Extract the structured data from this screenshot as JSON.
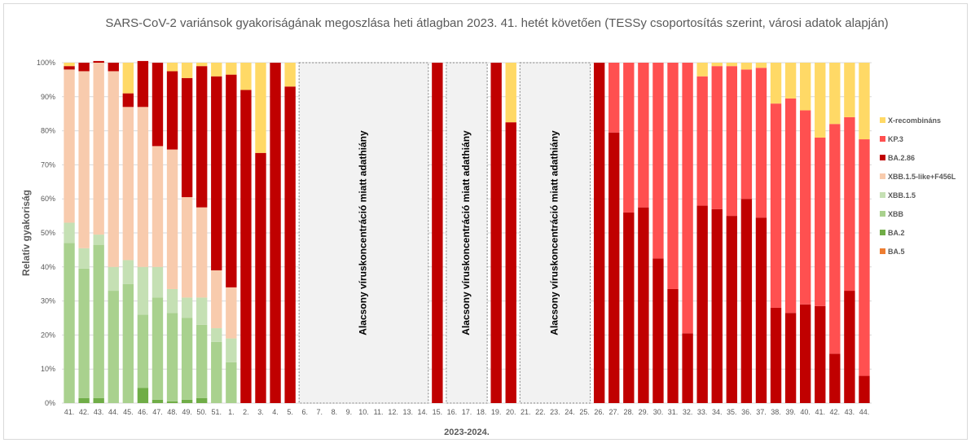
{
  "chart_data": {
    "type": "bar",
    "stacked": true,
    "title": "SARS-CoV-2 variánsok gyakoriságának megoszlása heti átlagban 2023. 41. hetét követően (TESSy csoportosítás szerint, városi adatok alapján)",
    "xlabel": "2023-2024.",
    "ylabel": "Relatív gyakoriság",
    "ylim": [
      0,
      100
    ],
    "yticks": [
      "0%",
      "10%",
      "20%",
      "30%",
      "40%",
      "50%",
      "60%",
      "70%",
      "80%",
      "90%",
      "100%"
    ],
    "grid": true,
    "legend_position": "right",
    "categories": [
      "41.",
      "42.",
      "43.",
      "44.",
      "45.",
      "46.",
      "47.",
      "48.",
      "49.",
      "50.",
      "51.",
      "1.",
      "2.",
      "3.",
      "4.",
      "5.",
      "6.",
      "7.",
      "8.",
      "9.",
      "10.",
      "11.",
      "12.",
      "13.",
      "14.",
      "15.",
      "16.",
      "17.",
      "18.",
      "19.",
      "20.",
      "21.",
      "22.",
      "23.",
      "24.",
      "25.",
      "26.",
      "27.",
      "28.",
      "29.",
      "30.",
      "31.",
      "32.",
      "33.",
      "34.",
      "35.",
      "36.",
      "37.",
      "38.",
      "39.",
      "40.",
      "41.",
      "42.",
      "43.",
      "44."
    ],
    "series": [
      {
        "name": "BA.5",
        "color": "#ed7d31",
        "values": [
          0,
          0,
          0,
          0,
          0,
          0,
          0,
          0,
          0,
          0,
          0,
          0,
          0,
          0,
          0,
          0,
          null,
          null,
          null,
          null,
          null,
          null,
          null,
          null,
          null,
          0,
          null,
          null,
          null,
          0,
          0,
          null,
          null,
          null,
          null,
          null,
          0,
          0,
          0,
          0,
          0,
          0,
          0,
          0,
          0,
          0,
          0,
          0,
          0,
          0,
          0,
          0,
          0,
          0,
          0
        ]
      },
      {
        "name": "BA.2",
        "color": "#70ad47",
        "values": [
          0,
          1.5,
          1.5,
          0,
          0,
          4.5,
          1,
          0.5,
          1,
          1.5,
          0,
          0,
          0,
          0,
          0,
          0,
          null,
          null,
          null,
          null,
          null,
          null,
          null,
          null,
          null,
          0,
          null,
          null,
          null,
          0,
          0,
          null,
          null,
          null,
          null,
          null,
          0,
          0,
          0,
          0,
          0,
          0,
          0,
          0,
          0,
          0,
          0,
          0,
          0,
          0,
          0,
          0,
          0,
          0,
          0
        ]
      },
      {
        "name": "XBB",
        "color": "#a9d18e",
        "values": [
          47,
          38,
          45,
          33,
          35,
          21.5,
          30,
          26,
          24,
          21.5,
          18,
          12,
          0,
          0,
          0,
          0,
          null,
          null,
          null,
          null,
          null,
          null,
          null,
          null,
          null,
          0,
          null,
          null,
          null,
          0,
          0,
          null,
          null,
          null,
          null,
          null,
          0,
          0,
          0,
          0,
          0,
          0,
          0,
          0,
          0,
          0,
          0,
          0,
          0,
          0,
          0,
          0,
          0,
          0,
          0
        ]
      },
      {
        "name": "XBB.1.5",
        "color": "#c5e0b4",
        "values": [
          6,
          6,
          3,
          7,
          7,
          14,
          9,
          7,
          6,
          8,
          4,
          7,
          0,
          0,
          0,
          0,
          null,
          null,
          null,
          null,
          null,
          null,
          null,
          null,
          null,
          0,
          null,
          null,
          null,
          0,
          0,
          null,
          null,
          null,
          null,
          null,
          0,
          0,
          0,
          0,
          0,
          0,
          0,
          0,
          0,
          0,
          0,
          0,
          0,
          0,
          0,
          0,
          0,
          0,
          0
        ]
      },
      {
        "name": "XBB.1.5-like+F456L",
        "color": "#f8cbad",
        "values": [
          45,
          52,
          50.5,
          57.5,
          45,
          47,
          35.5,
          41,
          29.5,
          26.5,
          17,
          15,
          0,
          0,
          0,
          0,
          null,
          null,
          null,
          null,
          null,
          null,
          null,
          null,
          null,
          0,
          null,
          null,
          null,
          0,
          0,
          null,
          null,
          null,
          null,
          null,
          0,
          0,
          0,
          0,
          0,
          0,
          0,
          0,
          0,
          0,
          0,
          0,
          0,
          0,
          0,
          0,
          0,
          0,
          0
        ]
      },
      {
        "name": "BA.2.86",
        "color": "#c00000",
        "values": [
          1,
          2.5,
          0.5,
          2.5,
          4,
          13.5,
          24.5,
          23,
          35,
          41.5,
          57,
          62.5,
          92,
          73.5,
          100,
          93,
          null,
          null,
          null,
          null,
          null,
          null,
          null,
          null,
          null,
          100,
          null,
          null,
          null,
          100,
          82.5,
          null,
          null,
          null,
          null,
          null,
          100,
          79.5,
          56,
          57.5,
          42.5,
          33.5,
          20.5,
          58,
          57,
          55,
          60,
          54.5,
          28,
          26.5,
          29,
          28.5,
          14.5,
          33,
          8
        ]
      },
      {
        "name": "KP.3",
        "color": "#ff5050",
        "values": [
          0,
          0,
          0,
          0,
          0,
          0,
          0,
          0,
          0,
          0,
          0,
          0,
          0,
          0,
          0,
          0,
          null,
          null,
          null,
          null,
          null,
          null,
          null,
          null,
          null,
          0,
          null,
          null,
          null,
          0,
          0,
          null,
          null,
          null,
          null,
          null,
          0,
          20.5,
          44,
          42.5,
          57.5,
          66.5,
          79.5,
          38,
          42,
          44,
          38,
          44,
          60,
          63,
          57,
          49.5,
          67.5,
          51,
          69.5
        ]
      },
      {
        "name": "X-recombináns",
        "color": "#ffd966",
        "values": [
          1,
          0,
          0,
          0,
          9,
          0,
          0,
          2.5,
          4.5,
          1,
          4,
          3.5,
          8,
          26.5,
          0,
          7,
          null,
          null,
          null,
          null,
          null,
          null,
          null,
          null,
          null,
          0,
          null,
          null,
          null,
          0,
          17.5,
          null,
          null,
          null,
          null,
          null,
          0,
          0,
          0,
          0,
          0,
          0,
          0,
          4,
          1,
          1,
          2,
          1.5,
          12,
          10.5,
          14,
          22,
          18,
          16,
          22.5
        ]
      }
    ],
    "annotations": [
      {
        "text": "Alacsony víruskoncentráció miatt adathiány",
        "from": "6.",
        "to": "14."
      },
      {
        "text": "Alacsony víruskoncentráció miatt adathiány",
        "from": "16.",
        "to": "18."
      },
      {
        "text": "Alacsony víruskoncentráció miatt adathiány",
        "from": "21.",
        "to": "25."
      }
    ]
  }
}
